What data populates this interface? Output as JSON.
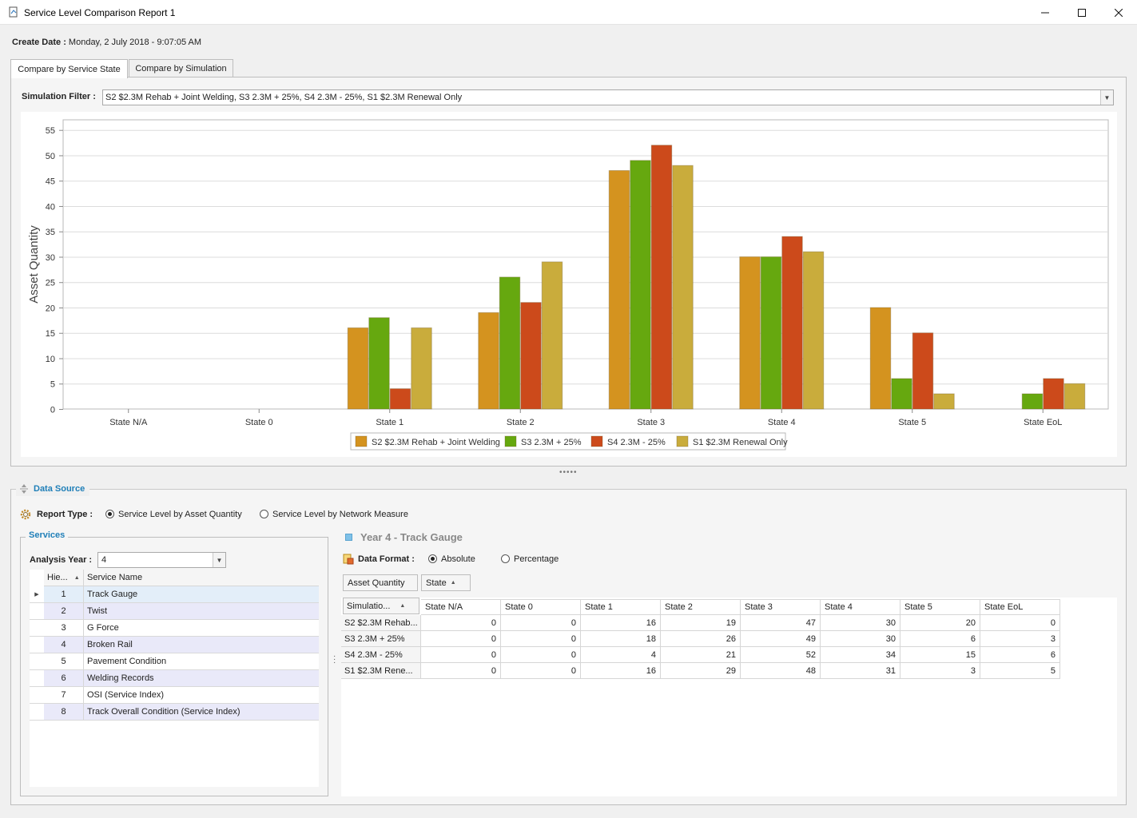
{
  "window": {
    "title": "Service Level Comparison Report 1"
  },
  "header": {
    "create_date_label": "Create Date :",
    "create_date_value": "Monday, 2 July 2018 - 9:07:05 AM"
  },
  "tabs": [
    {
      "label": "Compare by Service State",
      "active": true
    },
    {
      "label": "Compare by Simulation",
      "active": false
    }
  ],
  "filter": {
    "label": "Simulation Filter :",
    "value": "S2 $2.3M Rehab + Joint Welding, S3 2.3M + 25%, S4 2.3M - 25%, S1 $2.3M Renewal Only"
  },
  "chart_data": {
    "type": "bar",
    "ylabel": "Asset Quantity",
    "ylim": [
      0,
      57
    ],
    "yticks": [
      0,
      5,
      10,
      15,
      20,
      25,
      30,
      35,
      40,
      45,
      50,
      55
    ],
    "categories": [
      "State N/A",
      "State 0",
      "State 1",
      "State 2",
      "State 3",
      "State 4",
      "State 5",
      "State EoL"
    ],
    "legend_position": "bottom",
    "series": [
      {
        "name": "S2 $2.3M Rehab + Joint Welding",
        "color": "#d4931f",
        "values": [
          0,
          0,
          16,
          19,
          47,
          30,
          20,
          0
        ]
      },
      {
        "name": "S3 2.3M + 25%",
        "color": "#66a80f",
        "values": [
          0,
          0,
          18,
          26,
          49,
          30,
          6,
          3
        ]
      },
      {
        "name": "S4 2.3M - 25%",
        "color": "#cc4a1b",
        "values": [
          0,
          0,
          4,
          21,
          52,
          34,
          15,
          6
        ]
      },
      {
        "name": "S1 $2.3M Renewal Only",
        "color": "#c9ac3c",
        "values": [
          0,
          0,
          16,
          29,
          48,
          31,
          3,
          5
        ]
      }
    ]
  },
  "data_source": {
    "title": "Data Source",
    "report_type_label": "Report Type :",
    "report_options": [
      {
        "label": "Service Level by Asset Quantity",
        "selected": true
      },
      {
        "label": "Service Level by Network Measure",
        "selected": false
      }
    ],
    "services_title": "Services",
    "analysis_year_label": "Analysis Year :",
    "analysis_year_value": "4",
    "services_columns": [
      "Hie...",
      "Service Name"
    ],
    "services": [
      {
        "id": "1",
        "name": "Track Gauge"
      },
      {
        "id": "2",
        "name": "Twist"
      },
      {
        "id": "3",
        "name": "G Force"
      },
      {
        "id": "4",
        "name": "Broken Rail"
      },
      {
        "id": "5",
        "name": "Pavement Condition"
      },
      {
        "id": "6",
        "name": "Welding Records"
      },
      {
        "id": "7",
        "name": "OSI (Service Index)"
      },
      {
        "id": "8",
        "name": "Track Overall Condition (Service Index)"
      }
    ],
    "year_title": "Year 4 - Track Gauge",
    "data_format_label": "Data Format :",
    "format_options": [
      {
        "label": "Absolute",
        "selected": true
      },
      {
        "label": "Percentage",
        "selected": false
      }
    ],
    "data_field": "Asset Quantity",
    "column_field": "State",
    "row_field": "Simulatio...",
    "pivot_columns": [
      "State N/A",
      "State 0",
      "State 1",
      "State 2",
      "State 3",
      "State 4",
      "State 5",
      "State EoL"
    ],
    "pivot_rows": [
      {
        "name": "S2 $2.3M Rehab...",
        "values": [
          "0",
          "0",
          "16",
          "19",
          "47",
          "30",
          "20",
          "0"
        ]
      },
      {
        "name": "S3 2.3M + 25%",
        "values": [
          "0",
          "0",
          "18",
          "26",
          "49",
          "30",
          "6",
          "3"
        ]
      },
      {
        "name": "S4 2.3M - 25%",
        "values": [
          "0",
          "0",
          "4",
          "21",
          "52",
          "34",
          "15",
          "6"
        ]
      },
      {
        "name": "S1 $2.3M Rene...",
        "values": [
          "0",
          "0",
          "16",
          "29",
          "48",
          "31",
          "3",
          "5"
        ]
      }
    ]
  }
}
